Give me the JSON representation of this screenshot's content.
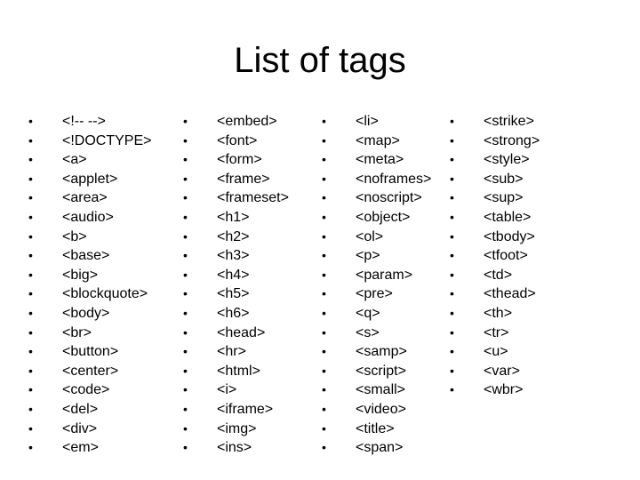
{
  "title": "List of tags",
  "bullet": "•",
  "columns": [
    [
      "<!-- -->",
      "<!DOCTYPE>",
      "<a>",
      "<applet>",
      "<area>",
      "<audio>",
      "<b>",
      "<base>",
      "<big>",
      "<blockquote>",
      "<body>",
      "<br>",
      "<button>",
      "<center>",
      "<code>",
      "<del>",
      "<div>",
      "<em>"
    ],
    [
      "<embed>",
      "<font>",
      "<form>",
      "<frame>",
      "<frameset>",
      "<h1>",
      "<h2>",
      "<h3>",
      "<h4>",
      "<h5>",
      "<h6>",
      "<head>",
      "<hr>",
      "<html>",
      "<i>",
      "<iframe>",
      "<img>",
      "<ins>"
    ],
    [
      "<li>",
      "<map>",
      "<meta>",
      "<noframes>",
      "<noscript>",
      "<object>",
      "<ol>",
      "<p>",
      "<param>",
      "<pre>",
      "<q>",
      "<s>",
      "<samp>",
      "<script>",
      "<small>",
      "<video>",
      "<title>",
      "<span>"
    ],
    [
      "<strike>",
      "<strong>",
      "<style>",
      "<sub>",
      "<sup>",
      "<table>",
      "<tbody>",
      "<tfoot>",
      "<td>",
      "<thead>",
      "<th>",
      "<tr>",
      "<u>",
      "<var>",
      "<wbr>"
    ]
  ]
}
